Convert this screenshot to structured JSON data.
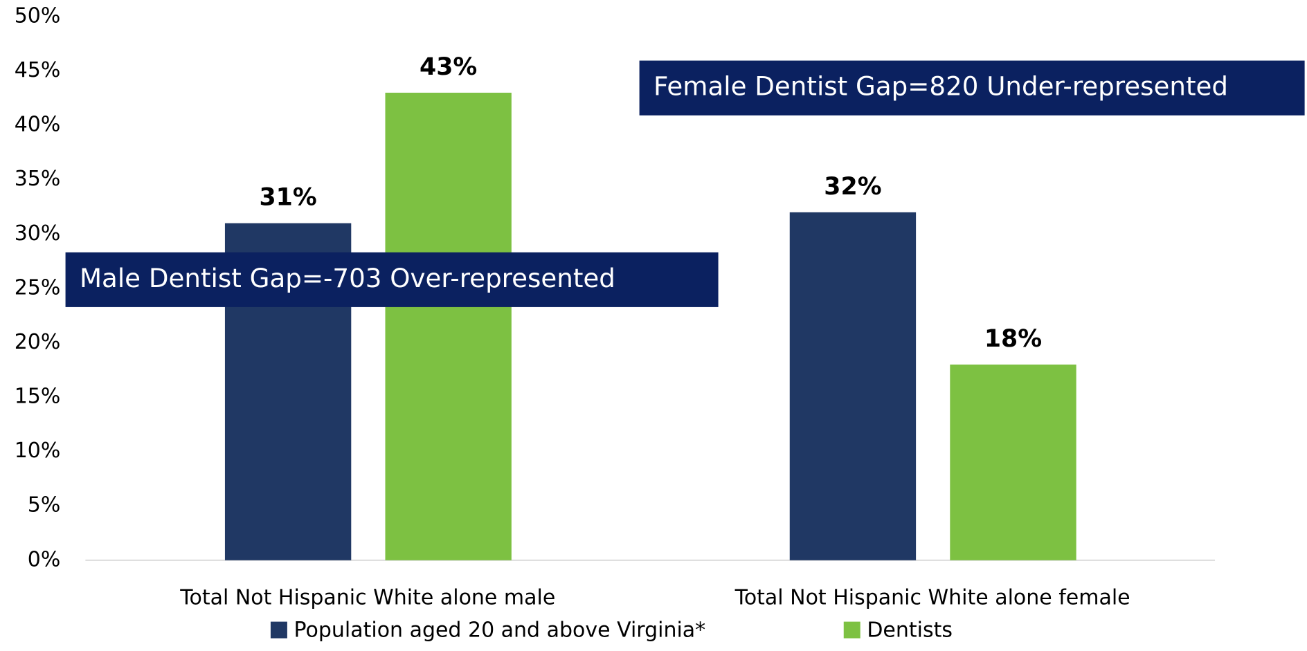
{
  "chart_data": {
    "type": "bar",
    "categories": [
      "Total Not Hispanic White alone male",
      "Total Not Hispanic White alone female"
    ],
    "series": [
      {
        "name": "Population aged 20 and above Virginia*",
        "color": "#203864",
        "values": [
          31,
          32
        ],
        "value_labels": [
          "31%",
          "32%"
        ]
      },
      {
        "name": "Dentists",
        "color": "#7dc142",
        "values": [
          43,
          18
        ],
        "value_labels": [
          "43%",
          "18%"
        ]
      }
    ],
    "ylim": [
      0,
      50
    ],
    "yticks": [
      {
        "value": 0,
        "label": "0%"
      },
      {
        "value": 5,
        "label": "5%"
      },
      {
        "value": 10,
        "label": "10%"
      },
      {
        "value": 15,
        "label": "15%"
      },
      {
        "value": 20,
        "label": "20%"
      },
      {
        "value": 25,
        "label": "25%"
      },
      {
        "value": 30,
        "label": "30%"
      },
      {
        "value": 35,
        "label": "35%"
      },
      {
        "value": 40,
        "label": "40%"
      },
      {
        "value": 45,
        "label": "45%"
      },
      {
        "value": 50,
        "label": "50%"
      }
    ],
    "annotations": [
      "Female Dentist Gap=820 Under-represented",
      "Male Dentist Gap=-703 Over-represented"
    ],
    "annotation_color": "#0b2160",
    "grid": false
  }
}
